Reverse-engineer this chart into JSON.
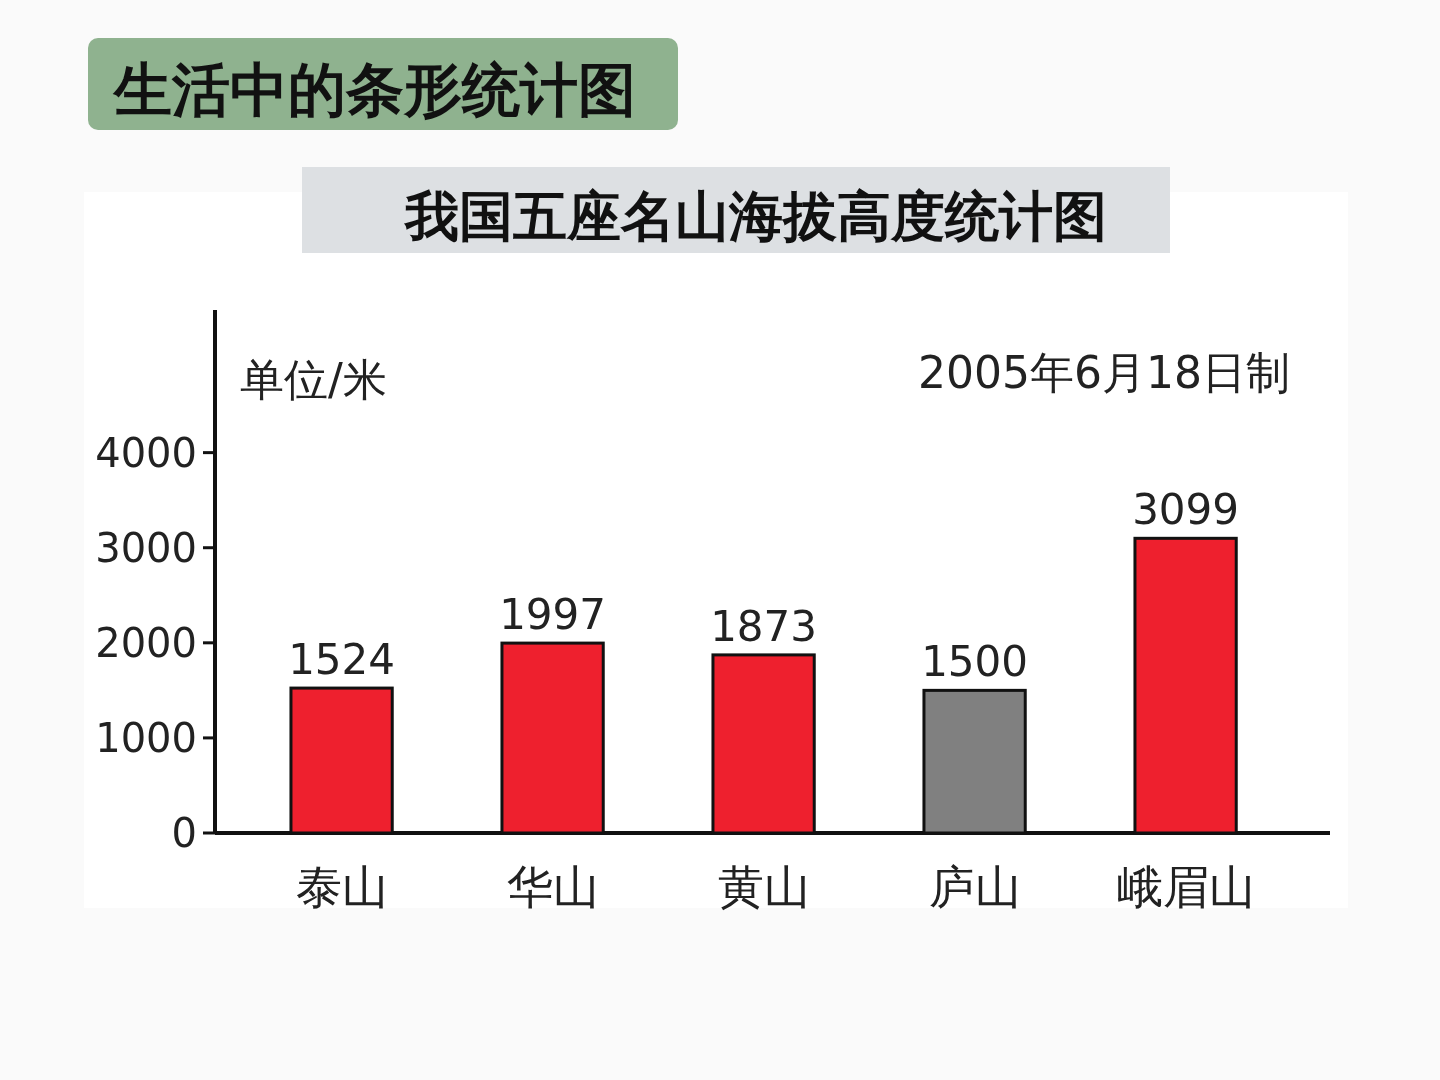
{
  "chart_data": {
    "type": "bar",
    "subtitle": "生活中的条形统计图",
    "title": "我国五座名山海拔高度统计图",
    "ylabel": "单位/米",
    "annotations": [
      "2005年6月18日制"
    ],
    "categories": [
      "泰山",
      "华山",
      "黄山",
      "庐山",
      "峨眉山"
    ],
    "values": [
      1524,
      1997,
      1873,
      1500,
      3099
    ],
    "colors": [
      "#ee202e",
      "#ee202e",
      "#ee202e",
      "#808080",
      "#ee202e"
    ],
    "ylim": [
      0,
      5500
    ],
    "yticks": [
      0,
      1000,
      2000,
      3000,
      4000
    ],
    "data_labels": true
  }
}
